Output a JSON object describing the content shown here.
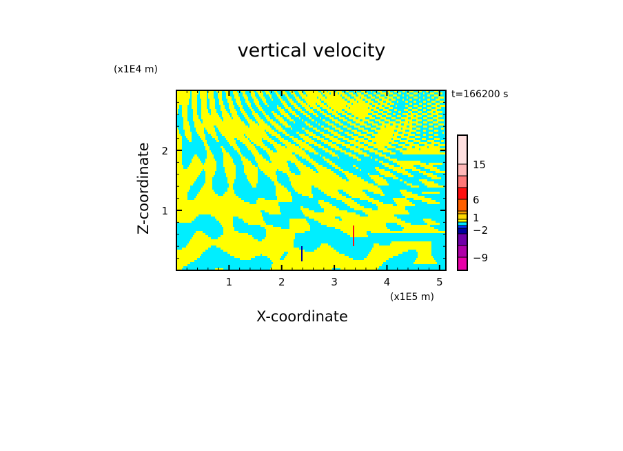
{
  "chart_data": {
    "type": "heatmap",
    "title": "vertical velocity",
    "xlabel": "X-coordinate",
    "ylabel": "Z-coordinate",
    "x_unit": "(x1E5 m)",
    "y_unit": "(x1E4 m)",
    "annotation": "t=166200 s",
    "xlim": [
      0,
      5.12
    ],
    "ylim": [
      0,
      3.0
    ],
    "x_ticks": [
      1,
      2,
      3,
      4,
      5
    ],
    "x_tick_labels": [
      "1",
      "2",
      "3",
      "4",
      "5"
    ],
    "y_ticks": [
      1,
      2
    ],
    "y_tick_labels": [
      "1",
      "2"
    ],
    "dominant_levels": [
      "yellow (0 to 1)",
      "cyan (-1 to 0)"
    ],
    "colorbar": {
      "colors": [
        "#e800a8",
        "#b000a8",
        "#7000a8",
        "#0000a0",
        "#0030ff",
        "#00e8ff",
        "#ffff00",
        "#ffd800",
        "#ffa000",
        "#ff6000",
        "#ff1010",
        "#ff7878",
        "#ffb8b8",
        "#ffe0e0"
      ],
      "labels": [
        {
          "value": -9,
          "text": "−9"
        },
        {
          "value": -2,
          "text": "−2"
        },
        {
          "value": 1,
          "text": "1"
        },
        {
          "value": 6,
          "text": "6"
        },
        {
          "value": 15,
          "text": "15"
        }
      ]
    }
  }
}
